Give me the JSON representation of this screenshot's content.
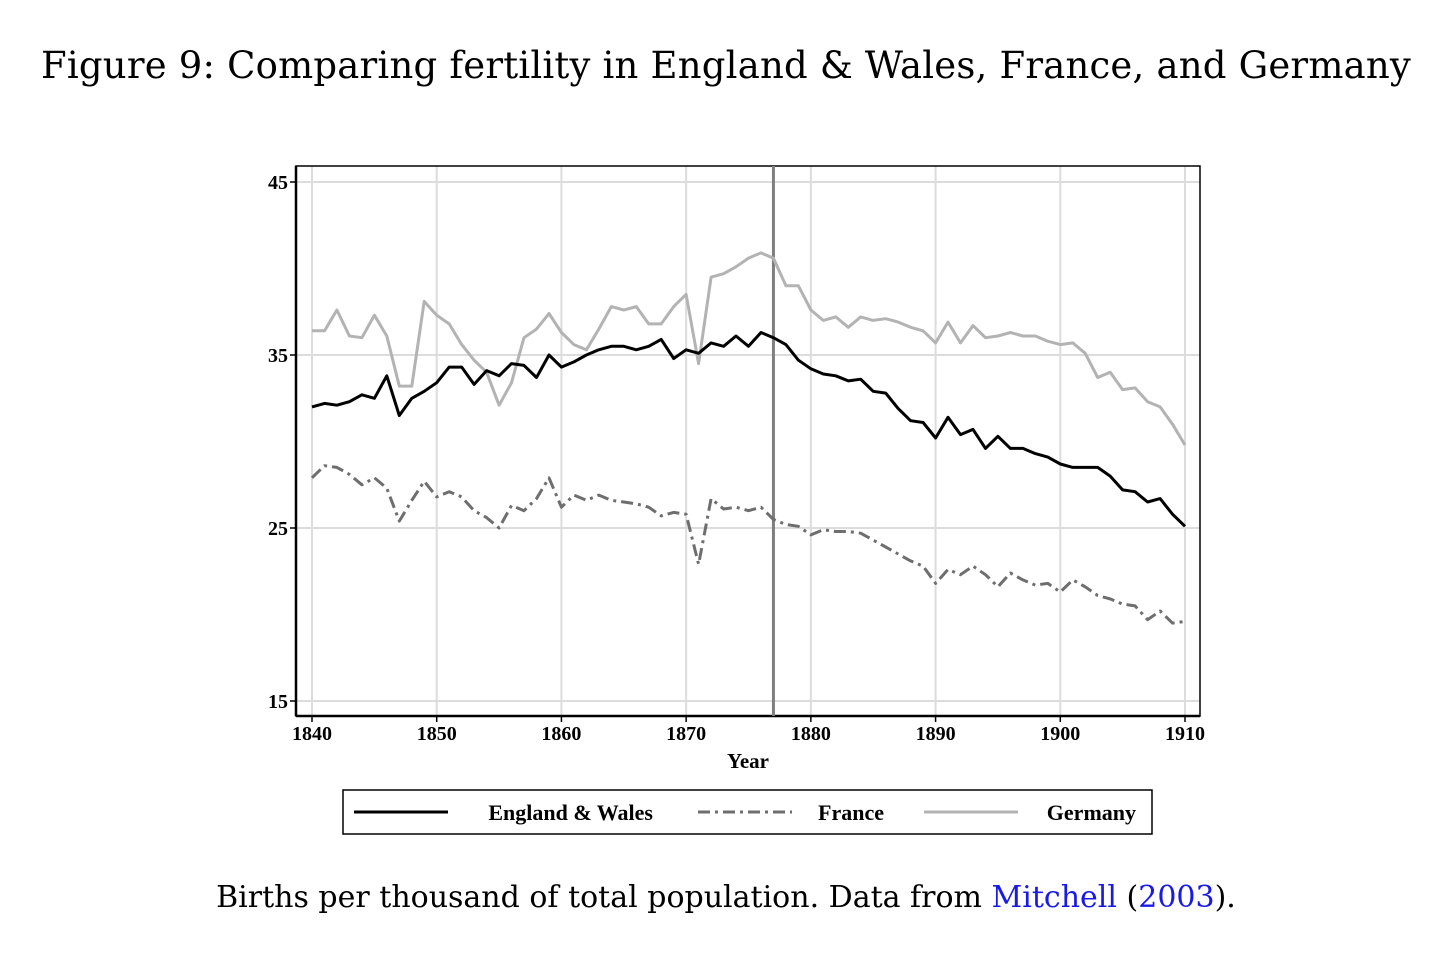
{
  "figure": {
    "title": "Figure 9: Comparing fertility in England & Wales, France, and Germany",
    "caption_text": "Births per thousand of total population. Data from ",
    "caption_ref_author": "Mitchell",
    "caption_ref_open": " (",
    "caption_ref_year": "2003",
    "caption_ref_close": ")."
  },
  "chart_data": {
    "type": "line",
    "xlabel": "Year",
    "ylabel": "",
    "xlim": [
      1840,
      1910
    ],
    "ylim": [
      15,
      45
    ],
    "x_ticks": [
      1840,
      1850,
      1860,
      1870,
      1880,
      1890,
      1900,
      1910
    ],
    "y_ticks": [
      15,
      25,
      35,
      45
    ],
    "grid": true,
    "vertical_marker_x": 1877,
    "legend_position": "bottom",
    "x": [
      1840,
      1841,
      1842,
      1843,
      1844,
      1845,
      1846,
      1847,
      1848,
      1849,
      1850,
      1851,
      1852,
      1853,
      1854,
      1855,
      1856,
      1857,
      1858,
      1859,
      1860,
      1861,
      1862,
      1863,
      1864,
      1865,
      1866,
      1867,
      1868,
      1869,
      1870,
      1871,
      1872,
      1873,
      1874,
      1875,
      1876,
      1877,
      1878,
      1879,
      1880,
      1881,
      1882,
      1883,
      1884,
      1885,
      1886,
      1887,
      1888,
      1889,
      1890,
      1891,
      1892,
      1893,
      1894,
      1895,
      1896,
      1897,
      1898,
      1899,
      1900,
      1901,
      1902,
      1903,
      1904,
      1905,
      1906,
      1907,
      1908,
      1909,
      1910
    ],
    "series": [
      {
        "name": "England & Wales",
        "color": "#000000",
        "dash": "solid",
        "values": [
          32.0,
          32.2,
          32.1,
          32.3,
          32.7,
          32.5,
          33.8,
          31.5,
          32.5,
          32.9,
          33.4,
          34.3,
          34.3,
          33.3,
          34.1,
          33.8,
          34.5,
          34.4,
          33.7,
          35.0,
          34.3,
          34.6,
          35.0,
          35.3,
          35.5,
          35.5,
          35.3,
          35.5,
          35.9,
          34.8,
          35.3,
          35.1,
          35.7,
          35.5,
          36.1,
          35.5,
          36.3,
          36.0,
          35.6,
          34.7,
          34.2,
          33.9,
          33.8,
          33.5,
          33.6,
          32.9,
          32.8,
          31.9,
          31.2,
          31.1,
          30.2,
          31.4,
          30.4,
          30.7,
          29.6,
          30.3,
          29.6,
          29.6,
          29.3,
          29.1,
          28.7,
          28.5,
          28.5,
          28.5,
          28.0,
          27.2,
          27.1,
          26.5,
          26.7,
          25.8,
          25.1
        ]
      },
      {
        "name": "France",
        "color": "#6e6e6e",
        "dash": "dashdot",
        "values": [
          27.9,
          28.6,
          28.5,
          28.1,
          27.5,
          27.9,
          27.3,
          25.4,
          26.6,
          27.7,
          26.8,
          27.1,
          26.8,
          26.0,
          25.6,
          25.0,
          26.3,
          26.0,
          26.7,
          27.9,
          26.2,
          26.9,
          26.6,
          26.9,
          26.6,
          26.5,
          26.4,
          26.2,
          25.7,
          25.9,
          25.8,
          22.9,
          26.7,
          26.1,
          26.2,
          26.0,
          26.2,
          25.5,
          25.2,
          25.1,
          24.6,
          24.9,
          24.8,
          24.8,
          24.7,
          24.3,
          23.9,
          23.5,
          23.1,
          22.8,
          21.8,
          22.6,
          22.3,
          22.8,
          22.3,
          21.6,
          22.4,
          22.0,
          21.7,
          21.8,
          21.3,
          22.0,
          21.6,
          21.1,
          20.9,
          20.6,
          20.5,
          19.7,
          20.2,
          19.5,
          19.6
        ]
      },
      {
        "name": "Germany",
        "color": "#b3b3b3",
        "dash": "solid",
        "values": [
          36.4,
          36.4,
          37.6,
          36.1,
          36.0,
          37.3,
          36.1,
          33.2,
          33.2,
          38.1,
          37.3,
          36.8,
          35.6,
          34.7,
          34.0,
          32.1,
          33.4,
          36.0,
          36.5,
          37.4,
          36.3,
          35.6,
          35.3,
          36.5,
          37.8,
          37.6,
          37.8,
          36.8,
          36.8,
          37.8,
          38.5,
          34.5,
          39.5,
          39.7,
          40.1,
          40.6,
          40.9,
          40.6,
          39.0,
          39.0,
          37.6,
          37.0,
          37.2,
          36.6,
          37.2,
          37.0,
          37.1,
          36.9,
          36.6,
          36.4,
          35.7,
          36.9,
          35.7,
          36.7,
          36.0,
          36.1,
          36.3,
          36.1,
          36.1,
          35.8,
          35.6,
          35.7,
          35.1,
          33.7,
          34.0,
          33.0,
          33.1,
          32.3,
          32.0,
          31.0,
          29.8
        ]
      }
    ]
  }
}
